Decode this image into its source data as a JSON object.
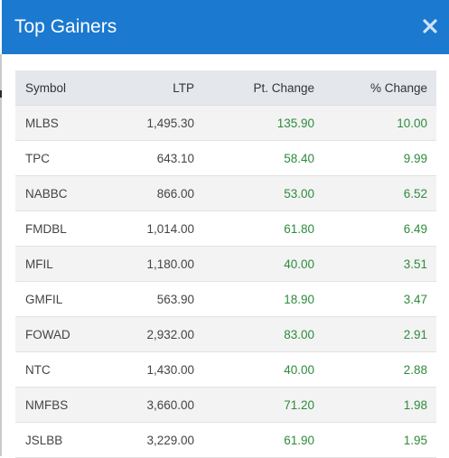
{
  "modal": {
    "title": "Top Gainers",
    "close_icon": "close-icon",
    "header_color": "#1b79cf",
    "gain_color": "#2e8b3d"
  },
  "table": {
    "columns": [
      "Symbol",
      "LTP",
      "Pt. Change",
      "% Change"
    ],
    "rows": [
      {
        "symbol": "MLBS",
        "ltp": "1,495.30",
        "pt_change": "135.90",
        "pct_change": "10.00"
      },
      {
        "symbol": "TPC",
        "ltp": "643.10",
        "pt_change": "58.40",
        "pct_change": "9.99"
      },
      {
        "symbol": "NABBC",
        "ltp": "866.00",
        "pt_change": "53.00",
        "pct_change": "6.52"
      },
      {
        "symbol": "FMDBL",
        "ltp": "1,014.00",
        "pt_change": "61.80",
        "pct_change": "6.49"
      },
      {
        "symbol": "MFIL",
        "ltp": "1,180.00",
        "pt_change": "40.00",
        "pct_change": "3.51"
      },
      {
        "symbol": "GMFIL",
        "ltp": "563.90",
        "pt_change": "18.90",
        "pct_change": "3.47"
      },
      {
        "symbol": "FOWAD",
        "ltp": "2,932.00",
        "pt_change": "83.00",
        "pct_change": "2.91"
      },
      {
        "symbol": "NTC",
        "ltp": "1,430.00",
        "pt_change": "40.00",
        "pct_change": "2.88"
      },
      {
        "symbol": "NMFBS",
        "ltp": "3,660.00",
        "pt_change": "71.20",
        "pct_change": "1.98"
      },
      {
        "symbol": "JSLBB",
        "ltp": "3,229.00",
        "pt_change": "61.90",
        "pct_change": "1.95"
      }
    ]
  }
}
